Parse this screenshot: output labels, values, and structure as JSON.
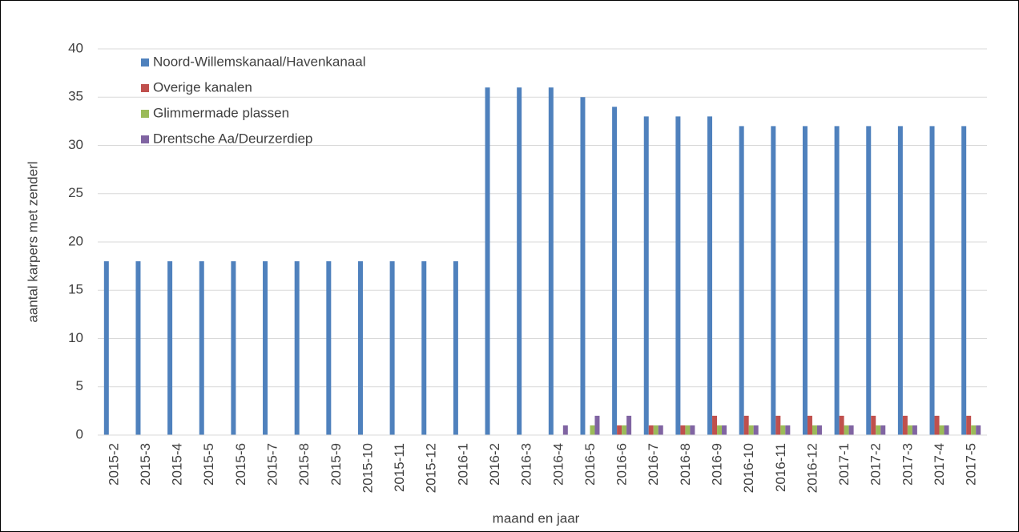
{
  "chart_data": {
    "type": "bar",
    "categories": [
      "2015-2",
      "2015-3",
      "2015-4",
      "2015-5",
      "2015-6",
      "2015-7",
      "2015-8",
      "2015-9",
      "2015-10",
      "2015-11",
      "2015-12",
      "2016-1",
      "2016-2",
      "2016-3",
      "2016-4",
      "2016-5",
      "2016-6",
      "2016-7",
      "2016-8",
      "2016-9",
      "2016-10",
      "2016-11",
      "2016-12",
      "2017-1",
      "2017-2",
      "2017-3",
      "2017-4",
      "2017-5"
    ],
    "series": [
      {
        "name": "Noord-Willemskanaal/Havenkanaal",
        "color": "#4f81bd",
        "values": [
          18,
          18,
          18,
          18,
          18,
          18,
          18,
          18,
          18,
          18,
          18,
          18,
          36,
          36,
          36,
          35,
          34,
          33,
          33,
          33,
          32,
          32,
          32,
          32,
          32,
          32,
          32,
          32
        ]
      },
      {
        "name": "Overige kanalen",
        "color": "#c0504d",
        "values": [
          null,
          null,
          null,
          null,
          null,
          null,
          null,
          null,
          null,
          null,
          null,
          null,
          null,
          null,
          null,
          null,
          1,
          1,
          1,
          2,
          2,
          2,
          2,
          2,
          2,
          2,
          2,
          2
        ]
      },
      {
        "name": "Glimmermade plassen",
        "color": "#9bbb59",
        "values": [
          null,
          null,
          null,
          null,
          null,
          null,
          null,
          null,
          null,
          null,
          null,
          null,
          null,
          null,
          null,
          1,
          1,
          1,
          1,
          1,
          1,
          1,
          1,
          1,
          1,
          1,
          1,
          1
        ]
      },
      {
        "name": "Drentsche Aa/Deurzerdiep",
        "color": "#8064a2",
        "values": [
          null,
          null,
          null,
          null,
          null,
          null,
          null,
          null,
          null,
          null,
          null,
          null,
          null,
          null,
          1,
          2,
          2,
          1,
          1,
          1,
          1,
          1,
          1,
          1,
          1,
          1,
          1,
          1
        ]
      }
    ],
    "xlabel": "maand en jaar",
    "ylabel": "aantal karpers met zenderl",
    "ylim": [
      0,
      40
    ],
    "yticks": [
      0,
      5,
      10,
      15,
      20,
      25,
      30,
      35,
      40
    ],
    "grid": true,
    "legend": "top-left"
  }
}
